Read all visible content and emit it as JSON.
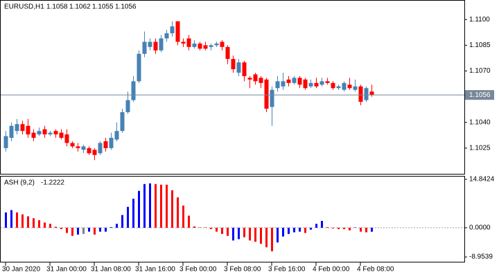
{
  "chart_data": {
    "type": "candlestick",
    "symbol": "EURUSD,H1",
    "ohlc_display": [
      1.1058,
      1.1062,
      1.1055,
      1.1056
    ],
    "categories": [
      "30 Jan 2020",
      null,
      null,
      null,
      null,
      null,
      null,
      null,
      "31 Jan 00:00",
      null,
      null,
      null,
      null,
      null,
      null,
      null,
      "31 Jan 08:00",
      null,
      null,
      null,
      null,
      null,
      null,
      null,
      "31 Jan 16:00",
      null,
      null,
      null,
      null,
      null,
      null,
      null,
      "3 Feb 00:00",
      null,
      null,
      null,
      null,
      null,
      null,
      null,
      "3 Feb 08:00",
      null,
      null,
      null,
      null,
      null,
      null,
      null,
      "3 Feb 16:00",
      null,
      null,
      null,
      null,
      null,
      null,
      null,
      "4 Feb 00:00",
      null,
      null,
      null,
      null,
      null,
      null,
      null,
      "4 Feb 08:00",
      null,
      null
    ],
    "open": [
      1.1025,
      1.1031,
      1.1035,
      1.1039,
      1.1038,
      1.1034,
      1.1033,
      1.1036,
      1.1033,
      1.1035,
      1.1034,
      1.1033,
      1.1028,
      1.1026,
      1.1024,
      1.1025,
      1.1024,
      1.1022,
      1.1029,
      1.1025,
      1.103,
      1.1035,
      1.1046,
      1.1053,
      1.1064,
      1.108,
      1.1084,
      1.1087,
      1.1082,
      1.1089,
      1.1092,
      1.1099,
      1.1087,
      1.1089,
      1.1084,
      1.1086,
      1.1085,
      1.1084,
      1.1085,
      1.1087,
      1.1084,
      1.1077,
      1.1069,
      1.1075,
      1.1066,
      1.1068,
      1.1066,
      1.1065,
      1.1049,
      1.106,
      1.1061,
      1.1065,
      1.1063,
      1.1066,
      1.1065,
      1.1061,
      1.1063,
      1.1062,
      1.1064,
      1.1063,
      1.106,
      1.1059,
      1.1062,
      1.1059,
      1.1061,
      1.1053,
      1.1058
    ],
    "high": [
      1.1035,
      1.104,
      1.1042,
      1.1041,
      1.1042,
      1.1036,
      1.1037,
      1.1038,
      1.1035,
      1.1036,
      1.1036,
      1.1036,
      1.1029,
      1.1028,
      1.1027,
      1.1026,
      1.1025,
      1.1029,
      1.1031,
      1.1034,
      1.104,
      1.1048,
      1.1058,
      1.1067,
      1.1082,
      1.1093,
      1.1089,
      1.1089,
      1.1091,
      1.1094,
      1.1099,
      1.1099,
      1.1089,
      1.1091,
      1.1088,
      1.1087,
      1.1087,
      1.1086,
      1.1087,
      1.1088,
      1.1085,
      1.1079,
      1.1077,
      1.1076,
      1.1067,
      1.1069,
      1.1067,
      1.1066,
      1.1061,
      1.1067,
      1.1069,
      1.1067,
      1.1067,
      1.1067,
      1.1066,
      1.1065,
      1.1066,
      1.1066,
      1.1066,
      1.1064,
      1.1062,
      1.1064,
      1.1066,
      1.1065,
      1.1062,
      1.1061,
      1.1062
    ],
    "low": [
      1.1023,
      1.1029,
      1.1033,
      1.1033,
      1.1031,
      1.1029,
      1.1032,
      1.1031,
      1.1032,
      1.1031,
      1.103,
      1.1026,
      1.1025,
      1.1023,
      1.1022,
      1.1021,
      1.1018,
      1.1021,
      1.1023,
      1.1024,
      1.1029,
      1.1034,
      1.1045,
      1.1052,
      1.1063,
      1.1078,
      1.1082,
      1.108,
      1.1081,
      1.1087,
      1.109,
      1.1085,
      1.1084,
      1.1082,
      1.1083,
      1.1082,
      1.1082,
      1.1082,
      1.1084,
      1.1082,
      1.1074,
      1.1069,
      1.1067,
      1.1064,
      1.106,
      1.1062,
      1.106,
      1.1046,
      1.1038,
      1.1058,
      1.1059,
      1.1061,
      1.1062,
      1.106,
      1.1059,
      1.106,
      1.106,
      1.1061,
      1.1062,
      1.1059,
      1.1059,
      1.1058,
      1.1059,
      1.1058,
      1.105,
      1.1052,
      1.1055
    ],
    "close": [
      1.1032,
      1.1038,
      1.1039,
      1.1035,
      1.1033,
      1.1031,
      1.1035,
      1.1033,
      1.1034,
      1.1033,
      1.1031,
      1.1028,
      1.1026,
      1.1025,
      1.1026,
      1.1022,
      1.1021,
      1.1028,
      1.1025,
      1.1031,
      1.1035,
      1.1046,
      1.1053,
      1.1064,
      1.108,
      1.1087,
      1.1087,
      1.1082,
      1.1089,
      1.1092,
      1.1096,
      1.1087,
      1.1086,
      1.1084,
      1.1086,
      1.1083,
      1.1083,
      1.1085,
      1.1086,
      1.1084,
      1.1077,
      1.1071,
      1.1075,
      1.1067,
      1.1065,
      1.1064,
      1.1063,
      1.1048,
      1.1059,
      1.1064,
      1.1064,
      1.1063,
      1.1066,
      1.1062,
      1.106,
      1.1063,
      1.1061,
      1.1064,
      1.1063,
      1.106,
      1.1061,
      1.1063,
      1.106,
      1.1061,
      1.1052,
      1.106,
      1.1056
    ],
    "up_color": "#4682b4",
    "down_color": "#ff0000",
    "ylim": [
      1.10096,
      1.11114
    ],
    "yticks": [
      {
        "value": 1.11,
        "label": "1.1100"
      },
      1.1085,
      {
        "value": 1.107,
        "label": "1.1070"
      },
      {
        "value": 1.104,
        "label": "1.1040"
      },
      1.1025
    ],
    "price_line": 1.1056,
    "price_line_color": "#778899",
    "indicator": {
      "type": "histogram",
      "name": "ASH (9,2)",
      "last_value": -1.2222,
      "values": [
        4.7,
        5.4,
        4.7,
        4.1,
        3.5,
        2.9,
        2.3,
        1.6,
        1.2,
        0.3,
        -0.4,
        -1.6,
        -2.5,
        -2.1,
        -1.9,
        -1.2,
        -2.1,
        -1.2,
        -1.2,
        0.2,
        1.2,
        3.9,
        6.4,
        8.9,
        11.3,
        13.4,
        13.6,
        13.4,
        13.2,
        13.2,
        11.5,
        9.3,
        6.8,
        3.7,
        0.4,
        0.1,
        0.1,
        -0.4,
        -1.2,
        -1.9,
        -2.5,
        -3.9,
        -3.5,
        -2.9,
        -3.9,
        -4.3,
        -4.9,
        -6.0,
        -7.2,
        -4.5,
        -2.7,
        -1.9,
        -1.4,
        -1.2,
        -1.6,
        -0.6,
        1.2,
        2.1,
        0.2,
        -0.2,
        -0.4,
        -0.4,
        -0.8,
        0.1,
        -1.2,
        -1.4,
        -1.2222
      ],
      "colors": [
        "#0000ff",
        "#0000ff",
        "#ff0000",
        "#ff0000",
        "#ff0000",
        "#ff0000",
        "#ff0000",
        "#ff0000",
        "#ff0000",
        "#ff0000",
        "#ff0000",
        "#ff0000",
        "#ff0000",
        "#0000ff",
        "#808080",
        "#0000ff",
        "#ff0000",
        "#0000ff",
        "#0000ff",
        "#0000ff",
        "#0000ff",
        "#0000ff",
        "#0000ff",
        "#0000ff",
        "#0000ff",
        "#0000ff",
        "#0000ff",
        "#ff0000",
        "#ff0000",
        "#ff0000",
        "#ff0000",
        "#ff0000",
        "#ff0000",
        "#ff0000",
        "#ff0000",
        "#ff0000",
        "#ff0000",
        "#ff0000",
        "#ff0000",
        "#ff0000",
        "#ff0000",
        "#0000ff",
        "#0000ff",
        "#ff0000",
        "#ff0000",
        "#ff0000",
        "#ff0000",
        "#ff0000",
        "#ff0000",
        "#0000ff",
        "#0000ff",
        "#0000ff",
        "#0000ff",
        "#0000ff",
        "#ff0000",
        "#0000ff",
        "#0000ff",
        "#0000ff",
        "#ff0000",
        "#ff0000",
        "#ff0000",
        "#ff0000",
        "#ff0000",
        "#0000ff",
        "#ff0000",
        "#ff0000",
        "#0000ff"
      ],
      "ylim": [
        -10.43,
        15.68
      ],
      "yticks": [
        14.8424,
        {
          "value": 0,
          "label": "0.0000"
        },
        -8.9539
      ]
    }
  }
}
